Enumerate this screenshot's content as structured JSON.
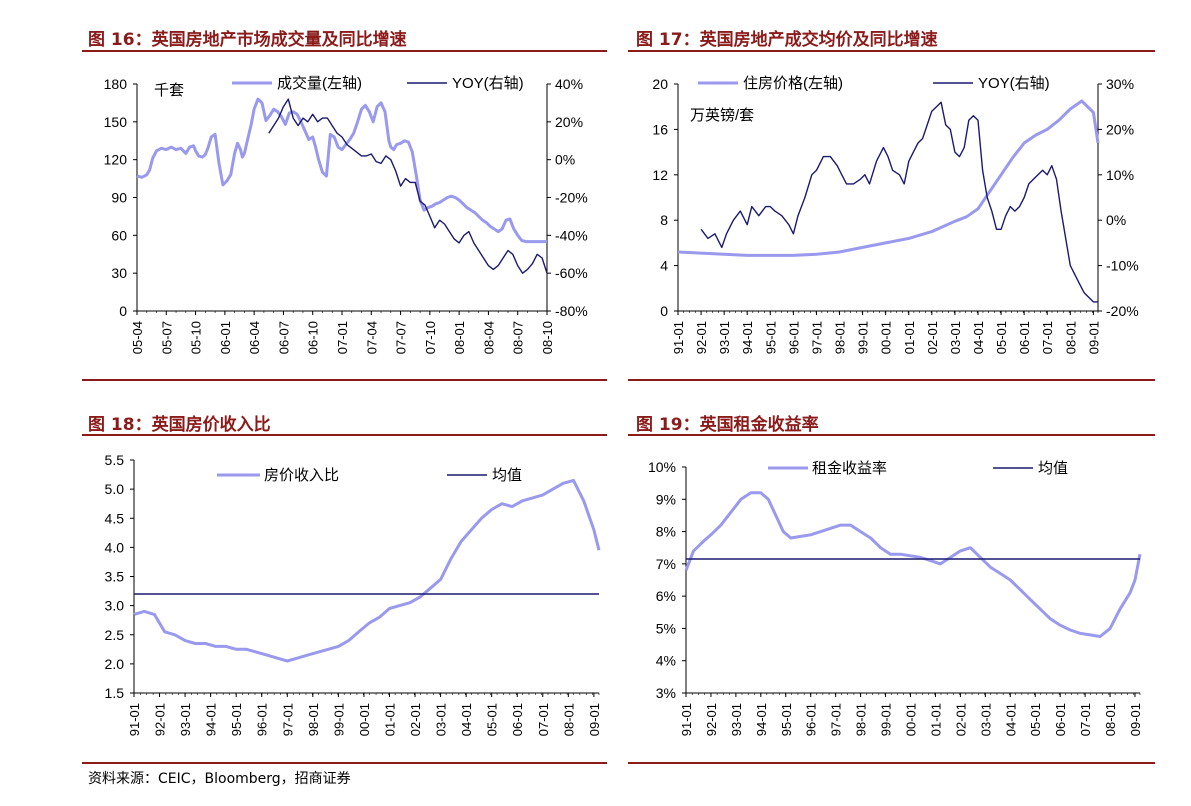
{
  "source_note": "资料来源：CEIC，Bloomberg，招商证券",
  "colors": {
    "accent": "#8b1a1a",
    "light_series": "#9999ee",
    "dark_series": "#1a1a70"
  },
  "panels": [
    {
      "title": "图 16：英国房地产市场成交量及同比增速",
      "chart_data": {
        "type": "line",
        "unit_label": "千套",
        "x_ticks": [
          "05-04",
          "05-07",
          "05-10",
          "06-01",
          "06-04",
          "06-07",
          "06-10",
          "07-01",
          "07-04",
          "07-07",
          "07-10",
          "08-01",
          "08-04",
          "08-07",
          "08-10"
        ],
        "y_left": {
          "range": [
            0,
            180
          ],
          "ticks": [
            "0",
            "30",
            "60",
            "90",
            "120",
            "150",
            "180"
          ]
        },
        "y_right": {
          "range": [
            -80,
            40
          ],
          "ticks": [
            "-80%",
            "-60%",
            "-40%",
            "-20%",
            "0%",
            "20%",
            "40%"
          ]
        },
        "series": [
          {
            "name": "成交量(左轴)",
            "axis": "left",
            "style": "light",
            "x": [
              0,
              0.5,
              1,
              1.3,
              1.6,
              2,
              2.5,
              3,
              3.5,
              4,
              4.5,
              5,
              5.4,
              5.8,
              6,
              6.3,
              6.7,
              7,
              7.3,
              7.6,
              8,
              8.4,
              8.8,
              9.2,
              9.6,
              10,
              10.3,
              10.6,
              10.8,
              11,
              11.3,
              11.7,
              12,
              12.4,
              12.8,
              13.2,
              13.6,
              14,
              14.4,
              14.8,
              15.2,
              15.6,
              16,
              16.4,
              16.8,
              17.2,
              17.6,
              18,
              18.3,
              18.6,
              19,
              19.4,
              19.8,
              20.2,
              20.6,
              21,
              21.4,
              21.8,
              22.2,
              22.6,
              23,
              23.4,
              23.8,
              24.2,
              24.6,
              25,
              25.4,
              25.8,
              26,
              26.3,
              26.6,
              27,
              27.4,
              27.8,
              28.2,
              28.6,
              29,
              29.4,
              29.8,
              30.2,
              30.6,
              31,
              31.4,
              31.8,
              32.2,
              32.6,
              33,
              33.4,
              33.8,
              34.2,
              34.6,
              35,
              35.4,
              35.8,
              36.2,
              36.6,
              37,
              37.4,
              37.8,
              38.2,
              38.6,
              39,
              39.4,
              39.8,
              40.2,
              40.6,
              41,
              41.4,
              41.8,
              42
            ],
            "y": [
              107,
              106,
              108,
              112,
              121,
              127,
              129,
              128,
              130,
              128,
              129,
              125,
              130,
              131,
              127,
              123,
              122,
              124,
              130,
              138,
              140,
              117,
              100,
              103,
              108,
              125,
              133,
              128,
              122,
              125,
              135,
              148,
              160,
              168,
              165,
              151,
              155,
              160,
              158,
              154,
              148,
              157,
              158,
              156,
              150,
              143,
              136,
              138,
              130,
              120,
              110,
              107,
              140,
              138,
              130,
              128,
              132,
              136,
              141,
              150,
              160,
              163,
              158,
              150,
              162,
              165,
              158,
              135,
              130,
              128,
              132,
              133,
              135,
              134,
              126,
              108,
              88,
              80,
              82,
              83,
              85,
              86,
              88,
              90,
              91,
              90,
              88,
              85,
              82,
              80,
              78,
              75,
              72,
              70,
              67,
              65,
              63,
              65,
              72,
              73,
              65,
              60,
              56,
              55,
              55,
              55,
              55,
              55,
              55,
              55
            ]
          },
          {
            "name": "YOY(右轴)",
            "axis": "right",
            "style": "dark",
            "x": [
              13.5,
              14,
              14.5,
              15,
              15.5,
              16,
              16.5,
              17,
              17.5,
              18,
              18.5,
              19,
              19.5,
              20,
              20.5,
              21,
              21.5,
              22,
              22.5,
              23,
              23.5,
              24,
              24.5,
              25,
              25.5,
              26,
              26.5,
              27,
              27.5,
              28,
              28.5,
              29,
              29.5,
              30,
              30.5,
              31,
              31.5,
              32,
              32.5,
              33,
              33.5,
              34,
              34.5,
              35,
              35.5,
              36,
              36.5,
              37,
              37.5,
              38,
              38.5,
              39,
              39.5,
              40,
              40.5,
              41,
              41.5,
              42
            ],
            "y": [
              14,
              18,
              22,
              28,
              32,
              22,
              18,
              22,
              20,
              24,
              20,
              22,
              22,
              18,
              14,
              12,
              8,
              6,
              4,
              2,
              2,
              3,
              -1,
              -2,
              2,
              0,
              -6,
              -14,
              -10,
              -12,
              -12,
              -22,
              -24,
              -30,
              -36,
              -32,
              -34,
              -38,
              -42,
              -44,
              -40,
              -38,
              -44,
              -48,
              -52,
              -56,
              -58,
              -56,
              -52,
              -48,
              -50,
              -56,
              -60,
              -58,
              -55,
              -50,
              -52,
              -60
            ]
          }
        ]
      }
    },
    {
      "title": "图 17：英国房地产成交均价及同比增速",
      "chart_data": {
        "type": "line",
        "unit_label": "万英镑/套",
        "x_ticks": [
          "91-01",
          "92-01",
          "93-01",
          "94-01",
          "95-01",
          "96-01",
          "97-01",
          "98-01",
          "99-01",
          "00-01",
          "01-01",
          "02-01",
          "03-01",
          "04-01",
          "05-01",
          "06-01",
          "07-01",
          "08-01",
          "09-01"
        ],
        "y_left": {
          "range": [
            0,
            20
          ],
          "ticks": [
            "0",
            "4",
            "8",
            "12",
            "16",
            "20"
          ]
        },
        "y_right": {
          "range": [
            -20,
            30
          ],
          "ticks": [
            "-20%",
            "-10%",
            "0%",
            "10%",
            "20%",
            "30%"
          ]
        },
        "series": [
          {
            "name": "住房价格(左轴)",
            "axis": "left",
            "style": "light",
            "x": [
              0,
              1,
              2,
              3,
              4,
              5,
              6,
              7,
              8,
              9,
              10,
              11,
              12,
              12.5,
              13,
              13.5,
              14,
              14.5,
              15,
              15.5,
              16,
              16.5,
              17,
              17.5,
              18,
              18.2
            ],
            "y": [
              5.2,
              5.1,
              5.0,
              4.9,
              4.9,
              4.9,
              5.0,
              5.2,
              5.6,
              6.0,
              6.4,
              7.0,
              7.9,
              8.3,
              9.0,
              10.5,
              12.0,
              13.5,
              14.8,
              15.5,
              16.0,
              16.8,
              17.8,
              18.5,
              17.5,
              14.8
            ]
          },
          {
            "name": "YOY(右轴)",
            "axis": "right",
            "style": "dark",
            "x": [
              1,
              1.3,
              1.6,
              1.9,
              2.1,
              2.4,
              2.7,
              3.0,
              3.2,
              3.5,
              3.8,
              4.0,
              4.2,
              4.5,
              4.8,
              5.0,
              5.2,
              5.5,
              5.8,
              6.0,
              6.3,
              6.6,
              6.9,
              7.1,
              7.3,
              7.6,
              7.9,
              8.1,
              8.3,
              8.6,
              8.9,
              9.1,
              9.3,
              9.6,
              9.8,
              10.0,
              10.2,
              10.4,
              10.6,
              10.8,
              11.0,
              11.2,
              11.4,
              11.6,
              11.8,
              12.0,
              12.2,
              12.4,
              12.6,
              12.8,
              13.0,
              13.2,
              13.4,
              13.6,
              13.8,
              14.0,
              14.2,
              14.4,
              14.6,
              14.8,
              15.0,
              15.2,
              15.4,
              15.6,
              15.8,
              16.0,
              16.2,
              16.4,
              16.6,
              16.8,
              17.0,
              17.2,
              17.4,
              17.6,
              17.8,
              18.0,
              18.2
            ],
            "y": [
              -2,
              -4,
              -3,
              -6,
              -3,
              0,
              2,
              -1,
              3,
              1,
              3,
              3,
              2,
              1,
              -1,
              -3,
              1,
              5,
              10,
              11,
              14,
              14,
              12,
              10,
              8,
              8,
              9,
              10,
              8,
              13,
              16,
              14,
              11,
              10,
              8,
              13,
              15,
              17,
              18,
              21,
              24,
              25,
              26,
              21,
              20,
              15,
              14,
              16,
              22,
              23,
              22,
              11,
              5,
              2,
              -2,
              -2,
              1,
              3,
              2,
              3,
              5,
              8,
              9,
              10,
              11,
              10,
              12,
              9,
              2,
              -4,
              -10,
              -12,
              -14,
              -16,
              -17,
              -18,
              -18
            ]
          }
        ]
      }
    },
    {
      "title": "图 18：英国房价收入比",
      "chart_data": {
        "type": "line",
        "x_ticks": [
          "91-01",
          "92-01",
          "93-01",
          "94-01",
          "95-01",
          "96-01",
          "97-01",
          "98-01",
          "99-01",
          "00-01",
          "01-01",
          "02-01",
          "03-01",
          "04-01",
          "05-01",
          "06-01",
          "07-01",
          "08-01",
          "09-01"
        ],
        "y_left": {
          "range": [
            1.5,
            5.5
          ],
          "ticks": [
            "1.5",
            "2.0",
            "2.5",
            "3.0",
            "3.5",
            "4.0",
            "4.5",
            "5.0",
            "5.5"
          ]
        },
        "series": [
          {
            "name": "房价收入比",
            "axis": "left",
            "style": "light",
            "x": [
              0,
              0.4,
              0.8,
              1.2,
              1.6,
              2,
              2.4,
              2.8,
              3.2,
              3.6,
              4,
              4.4,
              4.8,
              5.2,
              5.6,
              6,
              6.4,
              6.8,
              7.2,
              7.6,
              8,
              8.4,
              8.8,
              9.2,
              9.6,
              10,
              10.4,
              10.8,
              11.2,
              11.6,
              12,
              12.4,
              12.8,
              13.2,
              13.6,
              14,
              14.4,
              14.8,
              15.2,
              15.6,
              16,
              16.4,
              16.8,
              17.2,
              17.6,
              18,
              18.2
            ],
            "y": [
              2.85,
              2.9,
              2.85,
              2.55,
              2.5,
              2.4,
              2.35,
              2.35,
              2.3,
              2.3,
              2.25,
              2.25,
              2.2,
              2.15,
              2.1,
              2.05,
              2.1,
              2.15,
              2.2,
              2.25,
              2.3,
              2.4,
              2.55,
              2.7,
              2.8,
              2.95,
              3.0,
              3.05,
              3.15,
              3.3,
              3.45,
              3.8,
              4.1,
              4.3,
              4.5,
              4.65,
              4.75,
              4.7,
              4.8,
              4.85,
              4.9,
              5.0,
              5.1,
              5.15,
              4.8,
              4.3,
              3.95
            ]
          },
          {
            "name": "均值",
            "axis": "left",
            "style": "dark",
            "x": [
              0,
              18.2
            ],
            "y": [
              3.2,
              3.2
            ]
          }
        ]
      }
    },
    {
      "title": "图 19：英国租金收益率",
      "chart_data": {
        "type": "line",
        "x_ticks": [
          "91-01",
          "92-01",
          "93-01",
          "94-01",
          "95-01",
          "96-01",
          "97-01",
          "98-01",
          "99-01",
          "00-01",
          "01-01",
          "02-01",
          "03-01",
          "04-01",
          "05-01",
          "06-01",
          "07-01",
          "08-01",
          "09-01"
        ],
        "y_left": {
          "range": [
            3,
            10
          ],
          "ticks": [
            "3%",
            "4%",
            "5%",
            "6%",
            "7%",
            "8%",
            "9%",
            "10%"
          ]
        },
        "series": [
          {
            "name": "租金收益率",
            "axis": "left",
            "style": "light",
            "x": [
              0,
              0.3,
              0.7,
              1,
              1.4,
              1.8,
              2.2,
              2.6,
              3,
              3.3,
              3.6,
              3.9,
              4.2,
              4.6,
              5,
              5.4,
              5.8,
              6.2,
              6.6,
              7,
              7.4,
              7.8,
              8.2,
              8.6,
              9,
              9.4,
              9.8,
              10.2,
              10.6,
              11,
              11.4,
              11.8,
              12.2,
              12.6,
              13,
              13.4,
              13.8,
              14.2,
              14.6,
              15,
              15.4,
              15.8,
              16.2,
              16.6,
              17,
              17.4,
              17.8,
              18,
              18.2
            ],
            "y": [
              6.8,
              7.4,
              7.7,
              7.9,
              8.2,
              8.6,
              9.0,
              9.2,
              9.2,
              9.0,
              8.5,
              8.0,
              7.8,
              7.85,
              7.9,
              8.0,
              8.1,
              8.2,
              8.2,
              8.0,
              7.8,
              7.5,
              7.3,
              7.3,
              7.25,
              7.2,
              7.1,
              7.0,
              7.2,
              7.4,
              7.5,
              7.2,
              6.9,
              6.7,
              6.5,
              6.2,
              5.9,
              5.6,
              5.3,
              5.1,
              4.95,
              4.85,
              4.8,
              4.75,
              5.0,
              5.6,
              6.1,
              6.5,
              7.3
            ]
          },
          {
            "name": "均值",
            "axis": "left",
            "style": "dark",
            "x": [
              0,
              18.2
            ],
            "y": [
              7.15,
              7.15
            ]
          }
        ]
      }
    }
  ]
}
